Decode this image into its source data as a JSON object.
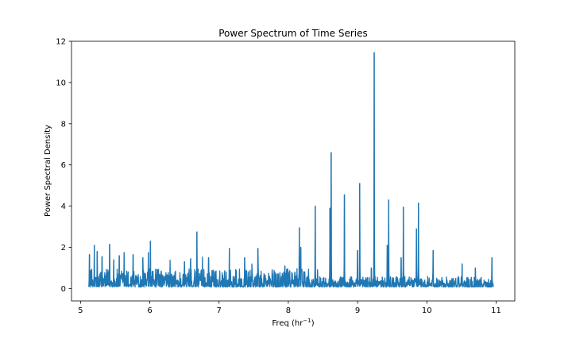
{
  "chart_data": {
    "type": "line",
    "title": "Power Spectrum of Time Series",
    "xlabel": "Freq (hr",
    "xlabel_sup": "−1",
    "xlabel_close": ")",
    "ylabel": "Power Spectral Density",
    "xlim": [
      4.87,
      11.27
    ],
    "ylim": [
      -0.6,
      12
    ],
    "xticks": [
      5,
      6,
      7,
      8,
      9,
      10,
      11
    ],
    "xtick_labels": [
      "5",
      "6",
      "7",
      "8",
      "9",
      "10",
      "11"
    ],
    "yticks": [
      0,
      2,
      4,
      6,
      8,
      10,
      12
    ],
    "ytick_labels": [
      "0",
      "2",
      "4",
      "6",
      "8",
      "10",
      "12"
    ],
    "grid": false,
    "legend": "none",
    "line_color": "#1f77b4",
    "x_range": [
      5.12,
      10.96
    ],
    "baseline": 0.25,
    "noise_amplitude": 0.55,
    "peaks": [
      {
        "x": 5.13,
        "y": 1.65
      },
      {
        "x": 5.2,
        "y": 2.1
      },
      {
        "x": 5.24,
        "y": 1.8
      },
      {
        "x": 5.31,
        "y": 1.55
      },
      {
        "x": 5.42,
        "y": 2.15
      },
      {
        "x": 5.48,
        "y": 1.4
      },
      {
        "x": 5.56,
        "y": 1.6
      },
      {
        "x": 5.63,
        "y": 1.75
      },
      {
        "x": 5.76,
        "y": 1.65
      },
      {
        "x": 5.9,
        "y": 1.5
      },
      {
        "x": 5.98,
        "y": 1.75
      },
      {
        "x": 6.01,
        "y": 2.3
      },
      {
        "x": 6.5,
        "y": 1.3
      },
      {
        "x": 6.59,
        "y": 1.45
      },
      {
        "x": 6.68,
        "y": 2.75
      },
      {
        "x": 6.85,
        "y": 1.5
      },
      {
        "x": 7.15,
        "y": 1.95
      },
      {
        "x": 7.37,
        "y": 1.5
      },
      {
        "x": 7.56,
        "y": 1.95
      },
      {
        "x": 7.95,
        "y": 1.1
      },
      {
        "x": 8.16,
        "y": 2.95
      },
      {
        "x": 8.18,
        "y": 2.0
      },
      {
        "x": 8.39,
        "y": 4.0
      },
      {
        "x": 8.6,
        "y": 3.9
      },
      {
        "x": 8.62,
        "y": 6.6
      },
      {
        "x": 8.81,
        "y": 4.55
      },
      {
        "x": 9.0,
        "y": 1.85
      },
      {
        "x": 9.03,
        "y": 5.1
      },
      {
        "x": 9.2,
        "y": 1.0
      },
      {
        "x": 9.24,
        "y": 11.45
      },
      {
        "x": 9.43,
        "y": 2.1
      },
      {
        "x": 9.45,
        "y": 4.3
      },
      {
        "x": 9.63,
        "y": 1.5
      },
      {
        "x": 9.66,
        "y": 3.95
      },
      {
        "x": 9.85,
        "y": 2.9
      },
      {
        "x": 9.88,
        "y": 4.15
      },
      {
        "x": 10.09,
        "y": 1.85
      },
      {
        "x": 10.51,
        "y": 1.2
      },
      {
        "x": 10.7,
        "y": 1.0
      },
      {
        "x": 10.94,
        "y": 1.5
      }
    ]
  }
}
